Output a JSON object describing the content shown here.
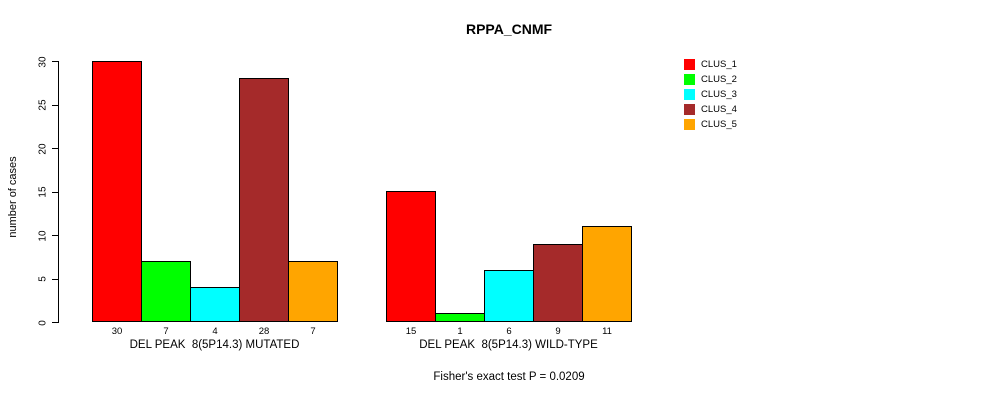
{
  "chart_data": {
    "type": "bar",
    "title": "RPPA_CNMF",
    "ylabel": "number of cases",
    "xlabel": "",
    "ylim": [
      0,
      30
    ],
    "yticks": [
      0,
      5,
      10,
      15,
      20,
      25,
      30
    ],
    "grid": false,
    "legend_position": "right",
    "series_names": [
      "CLUS_1",
      "CLUS_2",
      "CLUS_3",
      "CLUS_4",
      "CLUS_5"
    ],
    "colors": [
      "#FF0000",
      "#00FF00",
      "#00FFFF",
      "#A52A2A",
      "#FFA500"
    ],
    "groups": [
      {
        "label": "DEL PEAK  8(5P14.3) MUTATED",
        "values": [
          30,
          7,
          4,
          28,
          7
        ]
      },
      {
        "label": "DEL PEAK  8(5P14.3) WILD-TYPE",
        "values": [
          15,
          1,
          6,
          9,
          11
        ]
      }
    ],
    "annotation": "Fisher's exact test P = 0.0209"
  }
}
